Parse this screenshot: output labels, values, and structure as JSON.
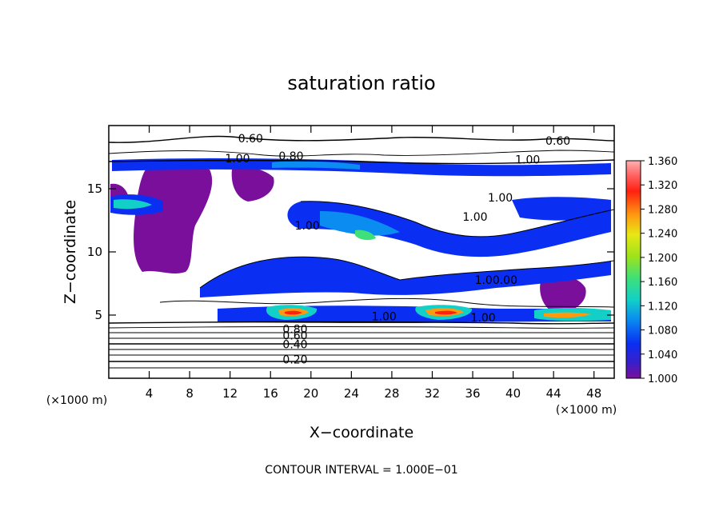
{
  "chart_data": {
    "type": "heatmap",
    "title": "saturation ratio",
    "xlabel": "X−coordinate",
    "ylabel": "Z−coordinate",
    "x_unit": "(×1000 m)",
    "footer": "CONTOUR INTERVAL = 1.000E−01",
    "xlim": [
      0,
      50
    ],
    "ylim": [
      0,
      20
    ],
    "x_ticks": [
      4,
      8,
      12,
      16,
      20,
      24,
      28,
      32,
      36,
      40,
      44,
      48
    ],
    "y_ticks": [
      5,
      10,
      15
    ],
    "colorbar": {
      "range": [
        1.0,
        1.36
      ],
      "labels": [
        "1.360",
        "1.320",
        "1.280",
        "1.240",
        "1.200",
        "1.160",
        "1.120",
        "1.080",
        "1.040",
        "1.000"
      ]
    },
    "contour_labels": [
      {
        "text": "0.60",
        "x": 12.8,
        "y": 19.0
      },
      {
        "text": "0.60",
        "x": 43.2,
        "y": 18.8
      },
      {
        "text": "1.00",
        "x": 11.5,
        "y": 17.4
      },
      {
        "text": "0.80",
        "x": 16.8,
        "y": 17.6
      },
      {
        "text": "1.00",
        "x": 40.2,
        "y": 17.3
      },
      {
        "text": "1.00",
        "x": 37.5,
        "y": 14.3
      },
      {
        "text": "1.00",
        "x": 35.0,
        "y": 12.8
      },
      {
        "text": "1.00",
        "x": 18.4,
        "y": 12.1
      },
      {
        "text": "1.00.00",
        "x": 36.2,
        "y": 7.8
      },
      {
        "text": "1.00",
        "x": 26.0,
        "y": 4.9
      },
      {
        "text": "1.00",
        "x": 35.8,
        "y": 4.8
      },
      {
        "text": "0.80",
        "x": 17.2,
        "y": 3.9
      },
      {
        "text": "0.60",
        "x": 17.2,
        "y": 3.4
      },
      {
        "text": "0.40",
        "x": 17.2,
        "y": 2.7
      },
      {
        "text": "0.20",
        "x": 17.2,
        "y": 1.5
      }
    ]
  }
}
